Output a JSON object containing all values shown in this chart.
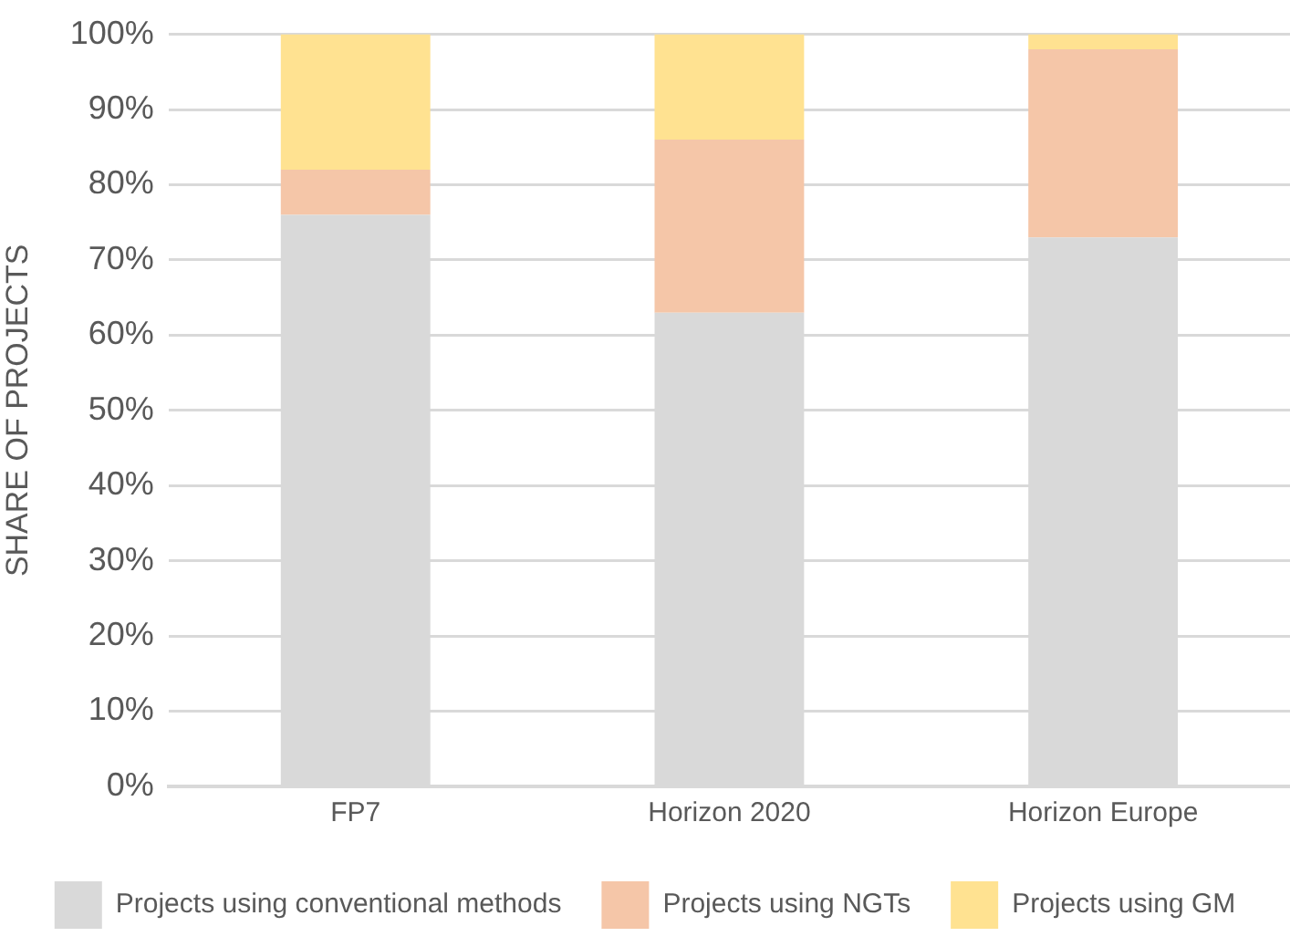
{
  "chart_data": {
    "type": "bar",
    "stacked": true,
    "ylabel": "SHARE OF PROJECTS",
    "categories": [
      "FP7",
      "Horizon 2020",
      "Horizon Europe"
    ],
    "series": [
      {
        "name": "Projects using conventional methods",
        "color": "#d9d9d9",
        "values": [
          76,
          63,
          73
        ]
      },
      {
        "name": "Projects using NGTs",
        "color": "#f5c6a8",
        "values": [
          6,
          23,
          25
        ]
      },
      {
        "name": "Projects using GM",
        "color": "#ffe291",
        "values": [
          18,
          14,
          2
        ]
      }
    ],
    "ylim": [
      0,
      100
    ],
    "yticks": [
      {
        "value": 0,
        "label": "0%"
      },
      {
        "value": 10,
        "label": "10%"
      },
      {
        "value": 20,
        "label": "20%"
      },
      {
        "value": 30,
        "label": "30%"
      },
      {
        "value": 40,
        "label": "40%"
      },
      {
        "value": 50,
        "label": "50%"
      },
      {
        "value": 60,
        "label": "60%"
      },
      {
        "value": 70,
        "label": "70%"
      },
      {
        "value": 80,
        "label": "80%"
      },
      {
        "value": 90,
        "label": "90%"
      },
      {
        "value": 100,
        "label": "100%"
      }
    ],
    "grid": "y",
    "legend": "bottom"
  }
}
